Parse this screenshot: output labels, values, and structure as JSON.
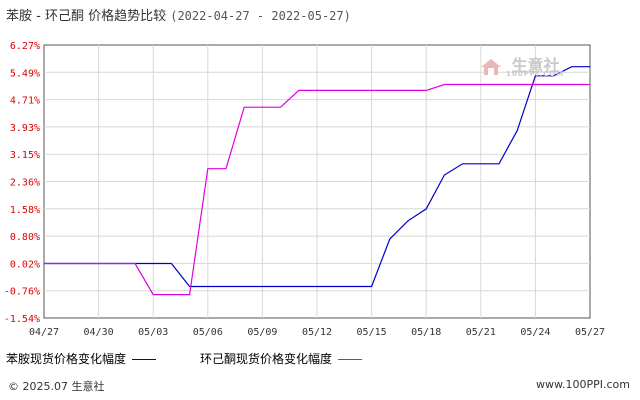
{
  "header": {
    "title_main": "苯胺 - 环己酮 价格趋势比较",
    "title_range": "(2022-04-27 - 2022-05-27)"
  },
  "watermark": {
    "brand": "生意社",
    "sub": "100PPI.COM",
    "icon": "house-logo-icon"
  },
  "legend": {
    "series1": "苯胺现货价格变化幅度",
    "series2": "环己酮现货价格变化幅度"
  },
  "footer": {
    "copyright": "© 2025.07 生意社",
    "url": "www.100PPI.com"
  },
  "colors": {
    "series1": "#0000cc",
    "series2": "#e000e0",
    "grid": "#d8d8d8",
    "axis": "#555555"
  },
  "chart_data": {
    "type": "line",
    "title": "苯胺 - 环己酮 价格趋势比较",
    "x_ticks": [
      "04/27",
      "04/30",
      "05/03",
      "05/06",
      "05/09",
      "05/12",
      "05/15",
      "05/18",
      "05/21",
      "05/24",
      "05/27"
    ],
    "y_ticks": [
      "6.27%",
      "5.49%",
      "4.71%",
      "3.93%",
      "3.15%",
      "2.36%",
      "1.58%",
      "0.80%",
      "0.02%",
      "-0.76%",
      "-1.54%"
    ],
    "ylim": [
      -1.54,
      6.27
    ],
    "xlim": [
      "2022-04-27",
      "2022-05-27"
    ],
    "grid": true,
    "legend_position": "bottom",
    "series": [
      {
        "name": "苯胺现货价格变化幅度",
        "color": "#0000cc",
        "points": [
          [
            "2022-04-27",
            0.02
          ],
          [
            "2022-05-02",
            0.02
          ],
          [
            "2022-05-04",
            0.02
          ],
          [
            "2022-05-05",
            -0.64
          ],
          [
            "2022-05-15",
            -0.64
          ],
          [
            "2022-05-16",
            0.72
          ],
          [
            "2022-05-17",
            1.24
          ],
          [
            "2022-05-18",
            1.58
          ],
          [
            "2022-05-19",
            2.55
          ],
          [
            "2022-05-20",
            2.87
          ],
          [
            "2022-05-22",
            2.87
          ],
          [
            "2022-05-23",
            3.82
          ],
          [
            "2022-05-24",
            5.39
          ],
          [
            "2022-05-25",
            5.39
          ],
          [
            "2022-05-26",
            5.65
          ],
          [
            "2022-05-27",
            5.65
          ]
        ]
      },
      {
        "name": "环己酮现货价格变化幅度",
        "color": "#e000e0",
        "points": [
          [
            "2022-04-27",
            0.02
          ],
          [
            "2022-05-02",
            0.02
          ],
          [
            "2022-05-03",
            -0.87
          ],
          [
            "2022-05-05",
            -0.87
          ],
          [
            "2022-05-06",
            2.73
          ],
          [
            "2022-05-07",
            2.73
          ],
          [
            "2022-05-08",
            4.49
          ],
          [
            "2022-05-10",
            4.49
          ],
          [
            "2022-05-11",
            4.97
          ],
          [
            "2022-05-18",
            4.97
          ],
          [
            "2022-05-19",
            5.14
          ],
          [
            "2022-05-27",
            5.14
          ]
        ]
      }
    ]
  }
}
